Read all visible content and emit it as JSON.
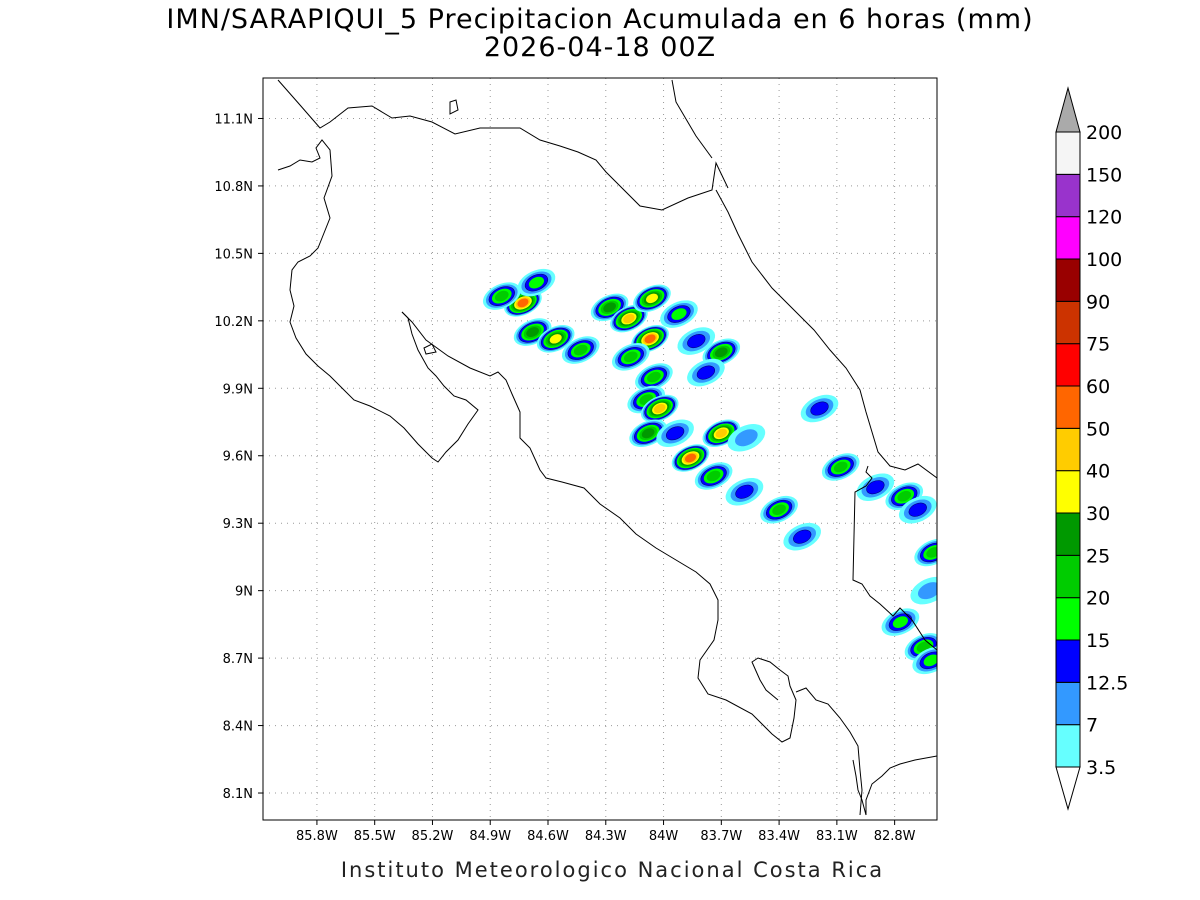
{
  "title_line1": "IMN/SARAPIQUI_5 Precipitacion Acumulada en 6 horas (mm)",
  "title_line2": "2026-04-18 00Z",
  "footer": "Instituto Meteorologico Nacional Costa Rica",
  "map": {
    "lon_range": [
      -86.08,
      -82.58
    ],
    "lat_range": [
      7.98,
      11.28
    ],
    "x_ticks": [
      "85.8W",
      "85.5W",
      "85.2W",
      "84.9W",
      "84.6W",
      "84.3W",
      "84W",
      "83.7W",
      "83.4W",
      "83.1W",
      "82.8W"
    ],
    "x_tick_values": [
      -85.8,
      -85.5,
      -85.2,
      -84.9,
      -84.6,
      -84.3,
      -84.0,
      -83.7,
      -83.4,
      -83.1,
      -82.8
    ],
    "y_ticks": [
      "11.1N",
      "10.8N",
      "10.5N",
      "10.2N",
      "9.9N",
      "9.6N",
      "9.3N",
      "9N",
      "8.7N",
      "8.4N",
      "8.1N"
    ],
    "y_tick_values": [
      11.1,
      10.8,
      10.5,
      10.2,
      9.9,
      9.6,
      9.3,
      9.0,
      8.7,
      8.4,
      8.1
    ],
    "grid": "dotted"
  },
  "colorbar": {
    "levels": [
      "3.5",
      "7",
      "12.5",
      "15",
      "20",
      "25",
      "30",
      "40",
      "50",
      "60",
      "75",
      "90",
      "100",
      "120",
      "150",
      "200"
    ],
    "colors": [
      "#66ffff",
      "#3399ff",
      "#0000ff",
      "#00ff00",
      "#00cc00",
      "#009900",
      "#ffff00",
      "#ffcc00",
      "#ff6600",
      "#ff0000",
      "#cc3300",
      "#990000",
      "#ff00ff",
      "#9933cc",
      "#f5f5f5"
    ],
    "under_color": "#ffffff",
    "over_color": "#aaaaaa"
  },
  "cells": [
    {
      "lon": -84.73,
      "lat": 10.28,
      "max_mm": 55
    },
    {
      "lon": -84.66,
      "lat": 10.37,
      "max_mm": 15
    },
    {
      "lon": -84.68,
      "lat": 10.15,
      "max_mm": 25
    },
    {
      "lon": -84.56,
      "lat": 10.12,
      "max_mm": 30
    },
    {
      "lon": -84.43,
      "lat": 10.07,
      "max_mm": 20
    },
    {
      "lon": -84.28,
      "lat": 10.26,
      "max_mm": 25
    },
    {
      "lon": -84.18,
      "lat": 10.21,
      "max_mm": 40
    },
    {
      "lon": -84.06,
      "lat": 10.3,
      "max_mm": 30
    },
    {
      "lon": -84.07,
      "lat": 10.12,
      "max_mm": 50
    },
    {
      "lon": -84.17,
      "lat": 10.04,
      "max_mm": 20
    },
    {
      "lon": -84.05,
      "lat": 9.95,
      "max_mm": 20
    },
    {
      "lon": -83.92,
      "lat": 10.23,
      "max_mm": 15
    },
    {
      "lon": -83.83,
      "lat": 10.11,
      "max_mm": 12.5
    },
    {
      "lon": -83.7,
      "lat": 10.06,
      "max_mm": 25
    },
    {
      "lon": -83.78,
      "lat": 9.97,
      "max_mm": 12.5
    },
    {
      "lon": -84.09,
      "lat": 9.85,
      "max_mm": 20
    },
    {
      "lon": -84.02,
      "lat": 9.81,
      "max_mm": 40
    },
    {
      "lon": -84.08,
      "lat": 9.7,
      "max_mm": 25
    },
    {
      "lon": -83.94,
      "lat": 9.7,
      "max_mm": 12.5
    },
    {
      "lon": -83.86,
      "lat": 9.59,
      "max_mm": 55
    },
    {
      "lon": -83.7,
      "lat": 9.7,
      "max_mm": 40
    },
    {
      "lon": -83.74,
      "lat": 9.51,
      "max_mm": 20
    },
    {
      "lon": -83.58,
      "lat": 9.44,
      "max_mm": 12.5
    },
    {
      "lon": -83.4,
      "lat": 9.36,
      "max_mm": 20
    },
    {
      "lon": -83.57,
      "lat": 9.68,
      "max_mm": 7
    },
    {
      "lon": -83.19,
      "lat": 9.81,
      "max_mm": 12.5
    },
    {
      "lon": -83.28,
      "lat": 9.24,
      "max_mm": 12.5
    },
    {
      "lon": -83.08,
      "lat": 9.55,
      "max_mm": 20
    },
    {
      "lon": -82.9,
      "lat": 9.46,
      "max_mm": 12.5
    },
    {
      "lon": -82.75,
      "lat": 9.42,
      "max_mm": 20
    },
    {
      "lon": -82.68,
      "lat": 9.36,
      "max_mm": 12.5
    },
    {
      "lon": -82.6,
      "lat": 9.17,
      "max_mm": 20
    },
    {
      "lon": -82.77,
      "lat": 8.86,
      "max_mm": 15
    },
    {
      "lon": -82.65,
      "lat": 8.75,
      "max_mm": 20
    },
    {
      "lon": -82.61,
      "lat": 8.69,
      "max_mm": 15
    },
    {
      "lon": -82.62,
      "lat": 9.0,
      "max_mm": 7
    },
    {
      "lon": -84.84,
      "lat": 10.31,
      "max_mm": 20
    }
  ]
}
